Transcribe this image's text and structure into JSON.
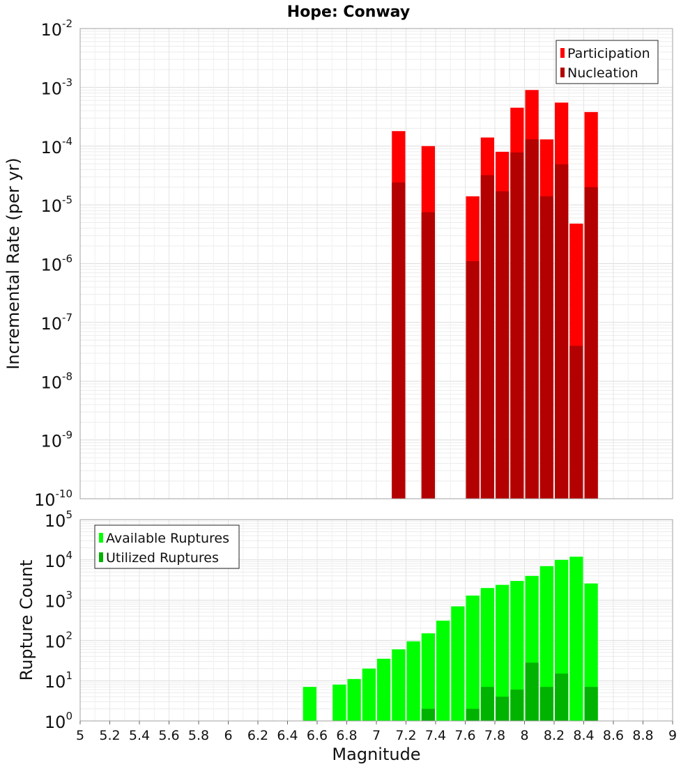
{
  "chart_data": [
    {
      "type": "bar",
      "panel": "top",
      "title": "Hope: Conway",
      "ylabel": "Incremental Rate (per yr)",
      "xlabel": "",
      "y_scale": "log",
      "ylim": [
        1e-10,
        0.01
      ],
      "xlim": [
        5,
        9
      ],
      "grid": true,
      "legend": {
        "placement": "top-right",
        "entries": [
          "Participation",
          "Nucleation"
        ]
      },
      "y_ticks": [
        {
          "base": "10",
          "exp": "-10"
        },
        {
          "base": "10",
          "exp": "-9"
        },
        {
          "base": "10",
          "exp": "-8"
        },
        {
          "base": "10",
          "exp": "-7"
        },
        {
          "base": "10",
          "exp": "-6"
        },
        {
          "base": "10",
          "exp": "-5"
        },
        {
          "base": "10",
          "exp": "-4"
        },
        {
          "base": "10",
          "exp": "-3"
        },
        {
          "base": "10",
          "exp": "-2"
        }
      ],
      "series": [
        {
          "name": "Participation",
          "color": "#ff0000",
          "x": [
            7.15,
            7.35,
            7.65,
            7.75,
            7.85,
            7.95,
            8.05,
            8.15,
            8.25,
            8.35,
            8.45
          ],
          "values": [
            0.00018,
            0.0001,
            1.4e-05,
            0.00014,
            8e-05,
            0.00045,
            0.0009,
            0.00013,
            0.00055,
            4.8e-06,
            0.00038
          ]
        },
        {
          "name": "Nucleation",
          "color": "#b30000",
          "x": [
            7.15,
            7.35,
            7.65,
            7.75,
            7.85,
            7.95,
            8.05,
            8.15,
            8.25,
            8.35,
            8.45
          ],
          "values": [
            2.4e-05,
            7.5e-06,
            1.1e-06,
            3.2e-05,
            1.7e-05,
            7.8e-05,
            0.00013,
            1.4e-05,
            4.9e-05,
            4e-08,
            2e-05
          ]
        }
      ]
    },
    {
      "type": "bar",
      "panel": "bottom",
      "title": "",
      "ylabel": "Rupture Count",
      "xlabel": "Magnitude",
      "y_scale": "log",
      "ylim": [
        1,
        100000.0
      ],
      "xlim": [
        5,
        9
      ],
      "grid": true,
      "legend": {
        "placement": "top-left",
        "entries": [
          "Available Ruptures",
          "Utilized Ruptures"
        ]
      },
      "y_ticks": [
        {
          "base": "10",
          "exp": "0"
        },
        {
          "base": "10",
          "exp": "1"
        },
        {
          "base": "10",
          "exp": "2"
        },
        {
          "base": "10",
          "exp": "3"
        },
        {
          "base": "10",
          "exp": "4"
        },
        {
          "base": "10",
          "exp": "5"
        }
      ],
      "x_ticks": [
        "5",
        "5.2",
        "5.4",
        "5.6",
        "5.8",
        "6",
        "6.2",
        "6.4",
        "6.6",
        "6.8",
        "7",
        "7.2",
        "7.4",
        "7.6",
        "7.8",
        "8",
        "8.2",
        "8.4",
        "8.6",
        "8.8",
        "9"
      ],
      "series": [
        {
          "name": "Available Ruptures",
          "color": "#00ff00",
          "x": [
            6.55,
            6.75,
            6.85,
            6.95,
            7.05,
            7.15,
            7.25,
            7.35,
            7.45,
            7.55,
            7.65,
            7.75,
            7.85,
            7.95,
            8.05,
            8.15,
            8.25,
            8.35,
            8.45
          ],
          "values": [
            7,
            8,
            11,
            20,
            35,
            60,
            95,
            150,
            310,
            700,
            1300,
            2000,
            2400,
            3000,
            4000,
            7000,
            10000,
            12000,
            2600
          ]
        },
        {
          "name": "Utilized Ruptures",
          "color": "#00b300",
          "x": [
            7.15,
            7.35,
            7.65,
            7.75,
            7.85,
            7.95,
            8.05,
            8.15,
            8.25,
            8.35,
            8.45
          ],
          "values": [
            1,
            2,
            2,
            7,
            4,
            6,
            28,
            7,
            15,
            1,
            7
          ]
        }
      ]
    }
  ]
}
